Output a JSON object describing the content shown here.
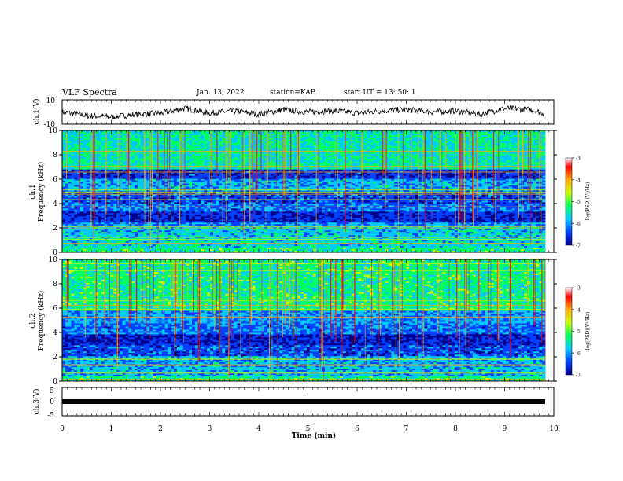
{
  "header": {
    "title": "VLF Spectra",
    "date": "Jan. 13, 2022",
    "station": "station=KAP",
    "start": "start UT =  13: 50: 1"
  },
  "chart_data": [
    {
      "type": "line",
      "panel": "ch1-waveform",
      "ylabel": "ch.1(V)",
      "ylim": [
        -10,
        10
      ],
      "yticks": [
        "10",
        "-10"
      ],
      "x": [
        0,
        0.5,
        1,
        1.5,
        2,
        2.5,
        3,
        3.5,
        4,
        4.5,
        5,
        5.5,
        6,
        6.5,
        7,
        7.5,
        8,
        8.5,
        9,
        9.5,
        9.8
      ],
      "y": [
        0,
        -3,
        -4,
        -2,
        -1,
        3,
        -1,
        1,
        -2,
        2,
        0,
        1,
        -1,
        1,
        2,
        0,
        1,
        -2,
        3,
        2,
        -1
      ],
      "color": "#000000"
    },
    {
      "type": "heatmap",
      "panel": "ch1-spectrogram",
      "ylabel": "ch.1\nFrequency (kHz)",
      "ylim": [
        0,
        10
      ],
      "yticks": [
        "0",
        "2",
        "4",
        "6",
        "8",
        "10"
      ],
      "colorbar": {
        "label": "log(PSD)(V²/Hz)",
        "range": [
          -7,
          -3
        ],
        "ticks": [
          "-3",
          "-4",
          "-5",
          "-6",
          "-7"
        ]
      }
    },
    {
      "type": "heatmap",
      "panel": "ch2-spectrogram",
      "ylabel": "ch.2\nFrequency (kHz)",
      "ylim": [
        0,
        10
      ],
      "yticks": [
        "0",
        "2",
        "4",
        "6",
        "8",
        "10"
      ],
      "colorbar": {
        "label": "log(PSD)(V²/Hz)",
        "range": [
          -7,
          -3
        ],
        "ticks": [
          "-3",
          "-4",
          "-5",
          "-6",
          "-7"
        ]
      }
    },
    {
      "type": "line",
      "panel": "ch3-waveform",
      "ylabel": "ch.3(V)",
      "ylim": [
        -5,
        5
      ],
      "yticks": [
        "5",
        "0",
        "-5"
      ],
      "x": [
        0,
        9.8
      ],
      "y": [
        0,
        0
      ],
      "color": "#000000"
    }
  ],
  "xaxis": {
    "label": "Time (min)",
    "xlim": [
      0,
      10
    ],
    "ticks": [
      "0",
      "1",
      "2",
      "3",
      "4",
      "5",
      "6",
      "7",
      "8",
      "9",
      "10"
    ]
  },
  "colors": {
    "colormap": [
      "#00008c",
      "#0040ff",
      "#00c8ff",
      "#00ff60",
      "#c8ff00",
      "#ffaa00",
      "#ff0000",
      "#ffffff"
    ]
  }
}
